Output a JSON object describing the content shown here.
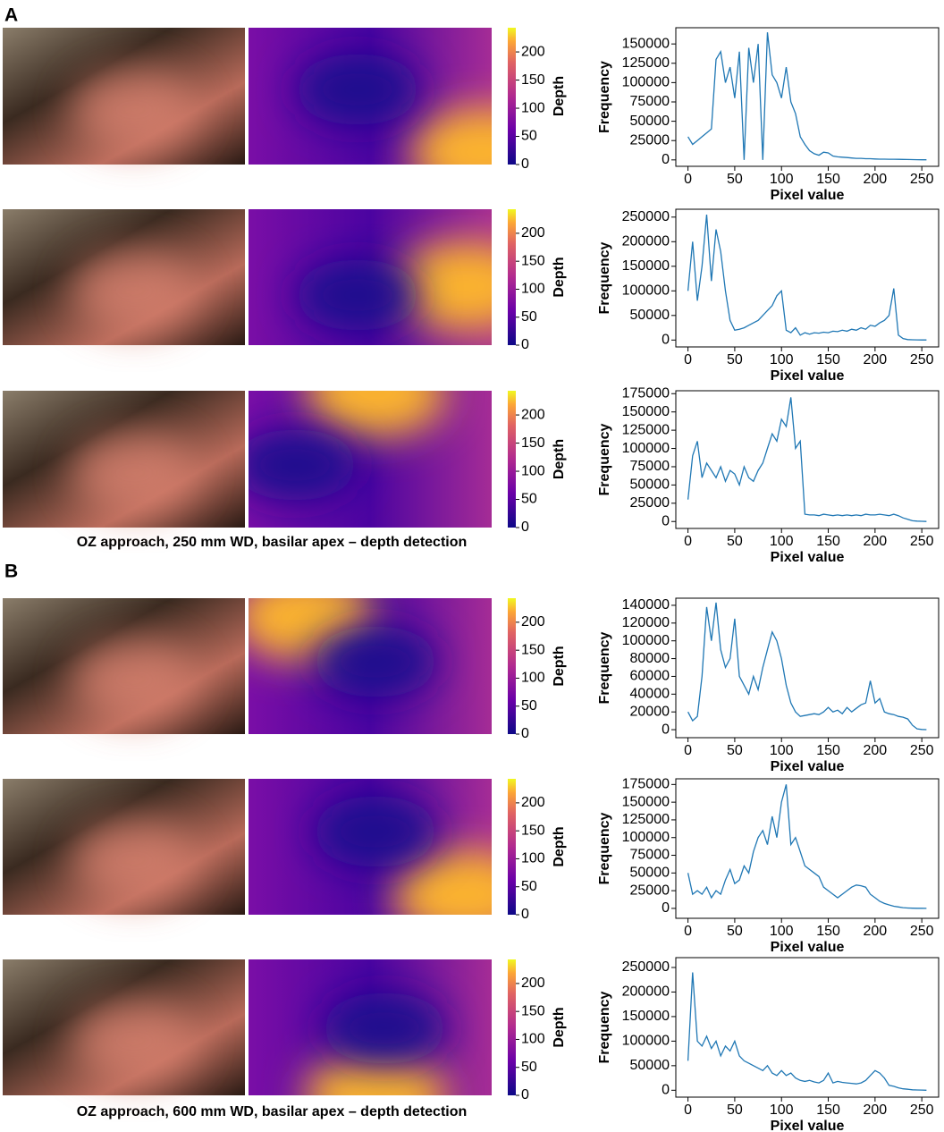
{
  "panels": [
    {
      "label": "A",
      "caption": "OZ approach, 250 mm WD, basilar apex – depth detection",
      "colorbars": [
        {
          "label": "Depth",
          "ylim": [
            0,
            243
          ],
          "yticks": [
            0,
            50,
            100,
            150,
            200
          ]
        },
        {
          "label": "Depth",
          "ylim": [
            0,
            243
          ],
          "yticks": [
            0,
            50,
            100,
            150,
            200
          ]
        },
        {
          "label": "Depth",
          "ylim": [
            0,
            243
          ],
          "yticks": [
            0,
            50,
            100,
            150,
            200
          ]
        }
      ]
    },
    {
      "label": "B",
      "caption": "OZ approach, 600 mm WD, basilar apex – depth detection",
      "colorbars": [
        {
          "label": "Depth",
          "ylim": [
            0,
            243
          ],
          "yticks": [
            0,
            50,
            100,
            150,
            200
          ]
        },
        {
          "label": "Depth",
          "ylim": [
            0,
            243
          ],
          "yticks": [
            0,
            50,
            100,
            150,
            200
          ]
        },
        {
          "label": "Depth",
          "ylim": [
            0,
            243
          ],
          "yticks": [
            0,
            50,
            100,
            150,
            200
          ]
        }
      ]
    }
  ],
  "chart_data": [
    {
      "type": "line",
      "xlabel": "Pixel value",
      "ylabel": "Frequency",
      "color": "#1f77b4",
      "xlim": [
        -13,
        268
      ],
      "ylim": [
        -8300,
        171000
      ],
      "xticks": [
        0,
        50,
        100,
        150,
        200,
        250
      ],
      "yticks": [
        0,
        25000,
        50000,
        75000,
        100000,
        125000,
        150000
      ],
      "x": [
        0,
        5,
        10,
        15,
        20,
        25,
        30,
        35,
        40,
        45,
        50,
        55,
        60,
        65,
        70,
        75,
        80,
        85,
        90,
        95,
        100,
        105,
        110,
        115,
        120,
        125,
        130,
        135,
        140,
        145,
        150,
        155,
        160,
        165,
        170,
        175,
        180,
        185,
        190,
        195,
        200,
        205,
        210,
        215,
        220,
        225,
        230,
        235,
        240,
        245,
        250,
        255
      ],
      "values": [
        30000,
        20000,
        25000,
        30000,
        35000,
        40000,
        130000,
        140000,
        100000,
        120000,
        80000,
        140000,
        0,
        145000,
        100000,
        150000,
        0,
        165000,
        110000,
        100000,
        80000,
        120000,
        75000,
        60000,
        30000,
        20000,
        12000,
        8000,
        6000,
        10000,
        9000,
        5000,
        4000,
        3500,
        3000,
        2500,
        2000,
        2000,
        1500,
        1500,
        1200,
        1000,
        1000,
        800,
        800,
        700,
        600,
        500,
        400,
        300,
        200,
        100
      ]
    },
    {
      "type": "line",
      "xlabel": "Pixel value",
      "ylabel": "Frequency",
      "color": "#1f77b4",
      "xlim": [
        -13,
        268
      ],
      "ylim": [
        -14000,
        266000
      ],
      "xticks": [
        0,
        50,
        100,
        150,
        200,
        250
      ],
      "yticks": [
        0,
        50000,
        100000,
        150000,
        200000,
        250000
      ],
      "x": [
        0,
        5,
        10,
        15,
        20,
        25,
        30,
        35,
        40,
        45,
        50,
        55,
        60,
        65,
        70,
        75,
        80,
        85,
        90,
        95,
        100,
        105,
        110,
        115,
        120,
        125,
        130,
        135,
        140,
        145,
        150,
        155,
        160,
        165,
        170,
        175,
        180,
        185,
        190,
        195,
        200,
        205,
        210,
        215,
        220,
        225,
        230,
        235,
        240,
        245,
        250,
        255
      ],
      "values": [
        100000,
        200000,
        80000,
        150000,
        255000,
        120000,
        225000,
        180000,
        100000,
        40000,
        20000,
        22000,
        25000,
        30000,
        35000,
        40000,
        50000,
        60000,
        70000,
        90000,
        100000,
        20000,
        15000,
        25000,
        10000,
        15000,
        12000,
        15000,
        14000,
        16000,
        15000,
        18000,
        17000,
        20000,
        18000,
        22000,
        20000,
        25000,
        22000,
        30000,
        28000,
        35000,
        40000,
        50000,
        105000,
        10000,
        3000,
        1000,
        500,
        300,
        200,
        100
      ]
    },
    {
      "type": "line",
      "xlabel": "Pixel value",
      "ylabel": "Frequency",
      "color": "#1f77b4",
      "xlim": [
        -13,
        268
      ],
      "ylim": [
        -9500,
        179000
      ],
      "xticks": [
        0,
        50,
        100,
        150,
        200,
        250
      ],
      "yticks": [
        0,
        25000,
        50000,
        75000,
        100000,
        125000,
        150000,
        175000
      ],
      "x": [
        0,
        5,
        10,
        15,
        20,
        25,
        30,
        35,
        40,
        45,
        50,
        55,
        60,
        65,
        70,
        75,
        80,
        85,
        90,
        95,
        100,
        105,
        110,
        115,
        120,
        125,
        130,
        135,
        140,
        145,
        150,
        155,
        160,
        165,
        170,
        175,
        180,
        185,
        190,
        195,
        200,
        205,
        210,
        215,
        220,
        225,
        230,
        235,
        240,
        245,
        250,
        255
      ],
      "values": [
        30000,
        90000,
        110000,
        60000,
        80000,
        70000,
        60000,
        75000,
        55000,
        70000,
        65000,
        50000,
        75000,
        60000,
        55000,
        70000,
        80000,
        100000,
        120000,
        110000,
        140000,
        130000,
        170000,
        100000,
        110000,
        10000,
        9000,
        9000,
        8000,
        10000,
        9000,
        8000,
        9000,
        8000,
        9000,
        8000,
        9000,
        8000,
        10000,
        9000,
        9000,
        10000,
        9000,
        8000,
        10000,
        8000,
        5000,
        3000,
        1000,
        500,
        300,
        100
      ]
    },
    {
      "type": "line",
      "xlabel": "Pixel value",
      "ylabel": "Frequency",
      "color": "#1f77b4",
      "xlim": [
        -13,
        268
      ],
      "ylim": [
        -9000,
        148000
      ],
      "xticks": [
        0,
        50,
        100,
        150,
        200,
        250
      ],
      "yticks": [
        0,
        20000,
        40000,
        60000,
        80000,
        100000,
        120000,
        140000
      ],
      "x": [
        0,
        5,
        10,
        15,
        20,
        25,
        30,
        35,
        40,
        45,
        50,
        55,
        60,
        65,
        70,
        75,
        80,
        85,
        90,
        95,
        100,
        105,
        110,
        115,
        120,
        125,
        130,
        135,
        140,
        145,
        150,
        155,
        160,
        165,
        170,
        175,
        180,
        185,
        190,
        195,
        200,
        205,
        210,
        215,
        220,
        225,
        230,
        235,
        240,
        245,
        250,
        255
      ],
      "values": [
        20000,
        10000,
        15000,
        60000,
        138000,
        100000,
        143000,
        90000,
        70000,
        80000,
        125000,
        60000,
        50000,
        40000,
        60000,
        45000,
        70000,
        90000,
        110000,
        100000,
        80000,
        50000,
        30000,
        20000,
        15000,
        16000,
        17000,
        18000,
        17000,
        20000,
        25000,
        20000,
        22000,
        18000,
        25000,
        20000,
        24000,
        28000,
        30000,
        55000,
        30000,
        35000,
        20000,
        18000,
        17000,
        15000,
        14000,
        12000,
        5000,
        1000,
        300,
        100
      ]
    },
    {
      "type": "line",
      "xlabel": "Pixel value",
      "ylabel": "Frequency",
      "color": "#1f77b4",
      "xlim": [
        -13,
        268
      ],
      "ylim": [
        -14000,
        183000
      ],
      "xticks": [
        0,
        50,
        100,
        150,
        200,
        250
      ],
      "yticks": [
        0,
        25000,
        50000,
        75000,
        100000,
        125000,
        150000,
        175000
      ],
      "x": [
        0,
        5,
        10,
        15,
        20,
        25,
        30,
        35,
        40,
        45,
        50,
        55,
        60,
        65,
        70,
        75,
        80,
        85,
        90,
        95,
        100,
        105,
        110,
        115,
        120,
        125,
        130,
        135,
        140,
        145,
        150,
        155,
        160,
        165,
        170,
        175,
        180,
        185,
        190,
        195,
        200,
        205,
        210,
        215,
        220,
        225,
        230,
        235,
        240,
        245,
        250,
        255
      ],
      "values": [
        50000,
        20000,
        25000,
        20000,
        30000,
        15000,
        25000,
        20000,
        40000,
        55000,
        35000,
        40000,
        60000,
        50000,
        80000,
        100000,
        110000,
        90000,
        130000,
        100000,
        150000,
        175000,
        90000,
        100000,
        80000,
        60000,
        55000,
        50000,
        45000,
        30000,
        25000,
        20000,
        15000,
        20000,
        25000,
        30000,
        33000,
        32000,
        30000,
        20000,
        15000,
        10000,
        7000,
        5000,
        3000,
        2000,
        1000,
        500,
        300,
        200,
        100,
        50
      ]
    },
    {
      "type": "line",
      "xlabel": "Pixel value",
      "ylabel": "Frequency",
      "color": "#1f77b4",
      "xlim": [
        -13,
        268
      ],
      "ylim": [
        -14000,
        270000
      ],
      "xticks": [
        0,
        50,
        100,
        150,
        200,
        250
      ],
      "yticks": [
        0,
        50000,
        100000,
        150000,
        200000,
        250000
      ],
      "x": [
        0,
        5,
        10,
        15,
        20,
        25,
        30,
        35,
        40,
        45,
        50,
        55,
        60,
        65,
        70,
        75,
        80,
        85,
        90,
        95,
        100,
        105,
        110,
        115,
        120,
        125,
        130,
        135,
        140,
        145,
        150,
        155,
        160,
        165,
        170,
        175,
        180,
        185,
        190,
        195,
        200,
        205,
        210,
        215,
        220,
        225,
        230,
        235,
        240,
        245,
        250,
        255
      ],
      "values": [
        60000,
        240000,
        100000,
        90000,
        110000,
        85000,
        100000,
        70000,
        90000,
        80000,
        100000,
        70000,
        60000,
        55000,
        50000,
        45000,
        40000,
        50000,
        35000,
        30000,
        40000,
        30000,
        35000,
        25000,
        20000,
        18000,
        20000,
        17000,
        15000,
        20000,
        35000,
        15000,
        18000,
        16000,
        15000,
        14000,
        13000,
        15000,
        20000,
        30000,
        40000,
        35000,
        25000,
        10000,
        8000,
        5000,
        3000,
        2000,
        1000,
        500,
        300,
        100
      ]
    }
  ]
}
